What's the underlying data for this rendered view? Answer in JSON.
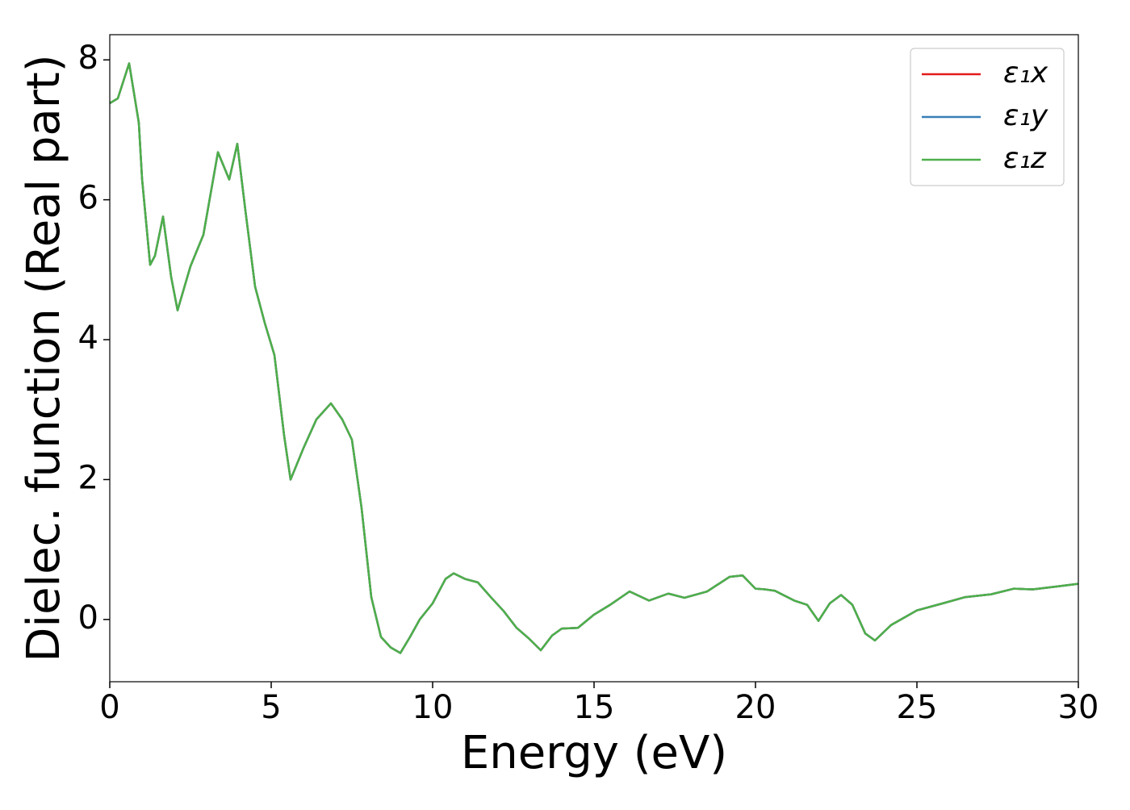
{
  "chart_data": {
    "type": "line",
    "xlabel": "Energy (eV)",
    "ylabel": "Dielec. function (Real part)",
    "x": [
      0,
      0.25,
      0.6,
      0.9,
      1.0,
      1.25,
      1.4,
      1.65,
      1.9,
      2.1,
      2.5,
      2.9,
      3.35,
      3.7,
      3.95,
      4.2,
      4.5,
      4.8,
      5.1,
      5.4,
      5.6,
      6.0,
      6.4,
      6.85,
      7.2,
      7.5,
      7.8,
      8.1,
      8.4,
      8.7,
      9.0,
      9.3,
      9.6,
      10.0,
      10.4,
      10.65,
      11.0,
      11.4,
      11.8,
      12.2,
      12.6,
      13.0,
      13.35,
      13.7,
      14.0,
      14.5,
      15.0,
      15.5,
      16.1,
      16.7,
      17.3,
      17.8,
      18.5,
      19.2,
      19.6,
      20.0,
      20.3,
      20.6,
      21.2,
      21.6,
      21.95,
      22.3,
      22.65,
      23.0,
      23.4,
      23.7,
      24.2,
      25.0,
      25.8,
      26.5,
      27.3,
      28.0,
      28.6,
      29.3,
      30
    ],
    "series": [
      {
        "name": "ε₁x",
        "color": "#e41a1c",
        "values": [
          7.38,
          7.45,
          7.95,
          7.1,
          6.3,
          5.07,
          5.2,
          5.76,
          4.9,
          4.42,
          5.05,
          5.5,
          6.68,
          6.29,
          6.8,
          5.85,
          4.76,
          4.24,
          3.78,
          2.63,
          2.0,
          2.45,
          2.86,
          3.09,
          2.86,
          2.57,
          1.59,
          0.32,
          -0.25,
          -0.4,
          -0.48,
          -0.25,
          0,
          0.23,
          0.58,
          0.66,
          0.58,
          0.53,
          0.32,
          0.12,
          -0.12,
          -0.28,
          -0.44,
          -0.23,
          -0.13,
          -0.12,
          0.07,
          0.21,
          0.4,
          0.27,
          0.37,
          0.31,
          0.4,
          0.61,
          0.63,
          0.44,
          0.43,
          0.41,
          0.27,
          0.21,
          -0.02,
          0.23,
          0.35,
          0.21,
          -0.2,
          -0.3,
          -0.08,
          0.13,
          0.23,
          0.32,
          0.36,
          0.44,
          0.43,
          0.47,
          0.51
        ]
      },
      {
        "name": "ε₁y",
        "color": "#377eb8",
        "values": [
          7.38,
          7.45,
          7.95,
          7.1,
          6.3,
          5.07,
          5.2,
          5.76,
          4.9,
          4.42,
          5.05,
          5.5,
          6.68,
          6.29,
          6.8,
          5.85,
          4.76,
          4.24,
          3.78,
          2.63,
          2.0,
          2.45,
          2.86,
          3.09,
          2.86,
          2.57,
          1.59,
          0.32,
          -0.25,
          -0.4,
          -0.48,
          -0.25,
          0,
          0.23,
          0.58,
          0.66,
          0.58,
          0.53,
          0.32,
          0.12,
          -0.12,
          -0.28,
          -0.44,
          -0.23,
          -0.13,
          -0.12,
          0.07,
          0.21,
          0.4,
          0.27,
          0.37,
          0.31,
          0.4,
          0.61,
          0.63,
          0.44,
          0.43,
          0.41,
          0.27,
          0.21,
          -0.02,
          0.23,
          0.35,
          0.21,
          -0.2,
          -0.3,
          -0.08,
          0.13,
          0.23,
          0.32,
          0.36,
          0.44,
          0.43,
          0.47,
          0.51
        ]
      },
      {
        "name": "ε₁z",
        "color": "#4daf4a",
        "values": [
          7.38,
          7.45,
          7.95,
          7.1,
          6.3,
          5.07,
          5.2,
          5.76,
          4.9,
          4.42,
          5.05,
          5.5,
          6.68,
          6.29,
          6.8,
          5.85,
          4.76,
          4.24,
          3.78,
          2.63,
          2.0,
          2.45,
          2.86,
          3.09,
          2.86,
          2.57,
          1.59,
          0.32,
          -0.25,
          -0.4,
          -0.48,
          -0.25,
          0,
          0.23,
          0.58,
          0.66,
          0.58,
          0.53,
          0.32,
          0.12,
          -0.12,
          -0.28,
          -0.44,
          -0.23,
          -0.13,
          -0.12,
          0.07,
          0.21,
          0.4,
          0.27,
          0.37,
          0.31,
          0.4,
          0.61,
          0.63,
          0.44,
          0.43,
          0.41,
          0.27,
          0.21,
          -0.02,
          0.23,
          0.35,
          0.21,
          -0.2,
          -0.3,
          -0.08,
          0.13,
          0.23,
          0.32,
          0.36,
          0.44,
          0.43,
          0.47,
          0.51
        ]
      }
    ],
    "xlim": [
      0,
      30
    ],
    "xticks": [
      0,
      5,
      10,
      15,
      20,
      25,
      30
    ],
    "ylim": [
      -0.89,
      8.36
    ],
    "yticks": [
      0,
      2,
      4,
      6,
      8
    ],
    "grid": false,
    "legend": "upper right"
  }
}
